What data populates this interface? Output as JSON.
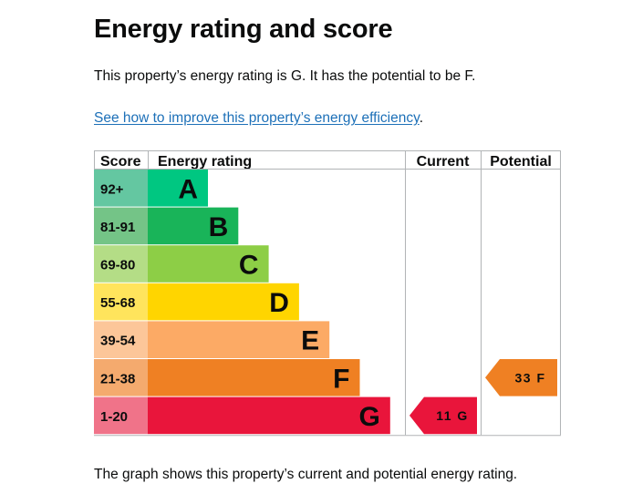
{
  "page": {
    "title": "Energy rating and score",
    "intro": "This property’s energy rating is G. It has the potential to be F.",
    "improve_link": "See how to improve this property’s energy efficiency",
    "improve_stop": ".",
    "footer_note": "The graph shows this property’s current and potential energy rating."
  },
  "colors": {
    "link": "#1d70b8",
    "grid": "#b1b4b6"
  },
  "chart_data": {
    "type": "table",
    "headers": {
      "score": "Score",
      "rating": "Energy rating",
      "current": "Current",
      "potential": "Potential"
    },
    "bands": [
      {
        "letter": "A",
        "range": "92+",
        "color": "#00c781",
        "score_color": "#64c7a1"
      },
      {
        "letter": "B",
        "range": "81-91",
        "color": "#19b459",
        "score_color": "#74c487"
      },
      {
        "letter": "C",
        "range": "69-80",
        "color": "#8dce46",
        "score_color": "#b4dd86"
      },
      {
        "letter": "D",
        "range": "55-68",
        "color": "#ffd500",
        "score_color": "#ffe45c"
      },
      {
        "letter": "E",
        "range": "39-54",
        "color": "#fcaa65",
        "score_color": "#fcc699"
      },
      {
        "letter": "F",
        "range": "21-38",
        "color": "#ef8023",
        "score_color": "#f4aa6e"
      },
      {
        "letter": "G",
        "range": "1-20",
        "color": "#e9153b",
        "score_color": "#f07389"
      }
    ],
    "current": {
      "score": 11,
      "letter": "G",
      "label": "11 G",
      "color": "#e9153b"
    },
    "potential": {
      "score": 33,
      "letter": "F",
      "label": "33 F",
      "color": "#ef8023"
    }
  }
}
